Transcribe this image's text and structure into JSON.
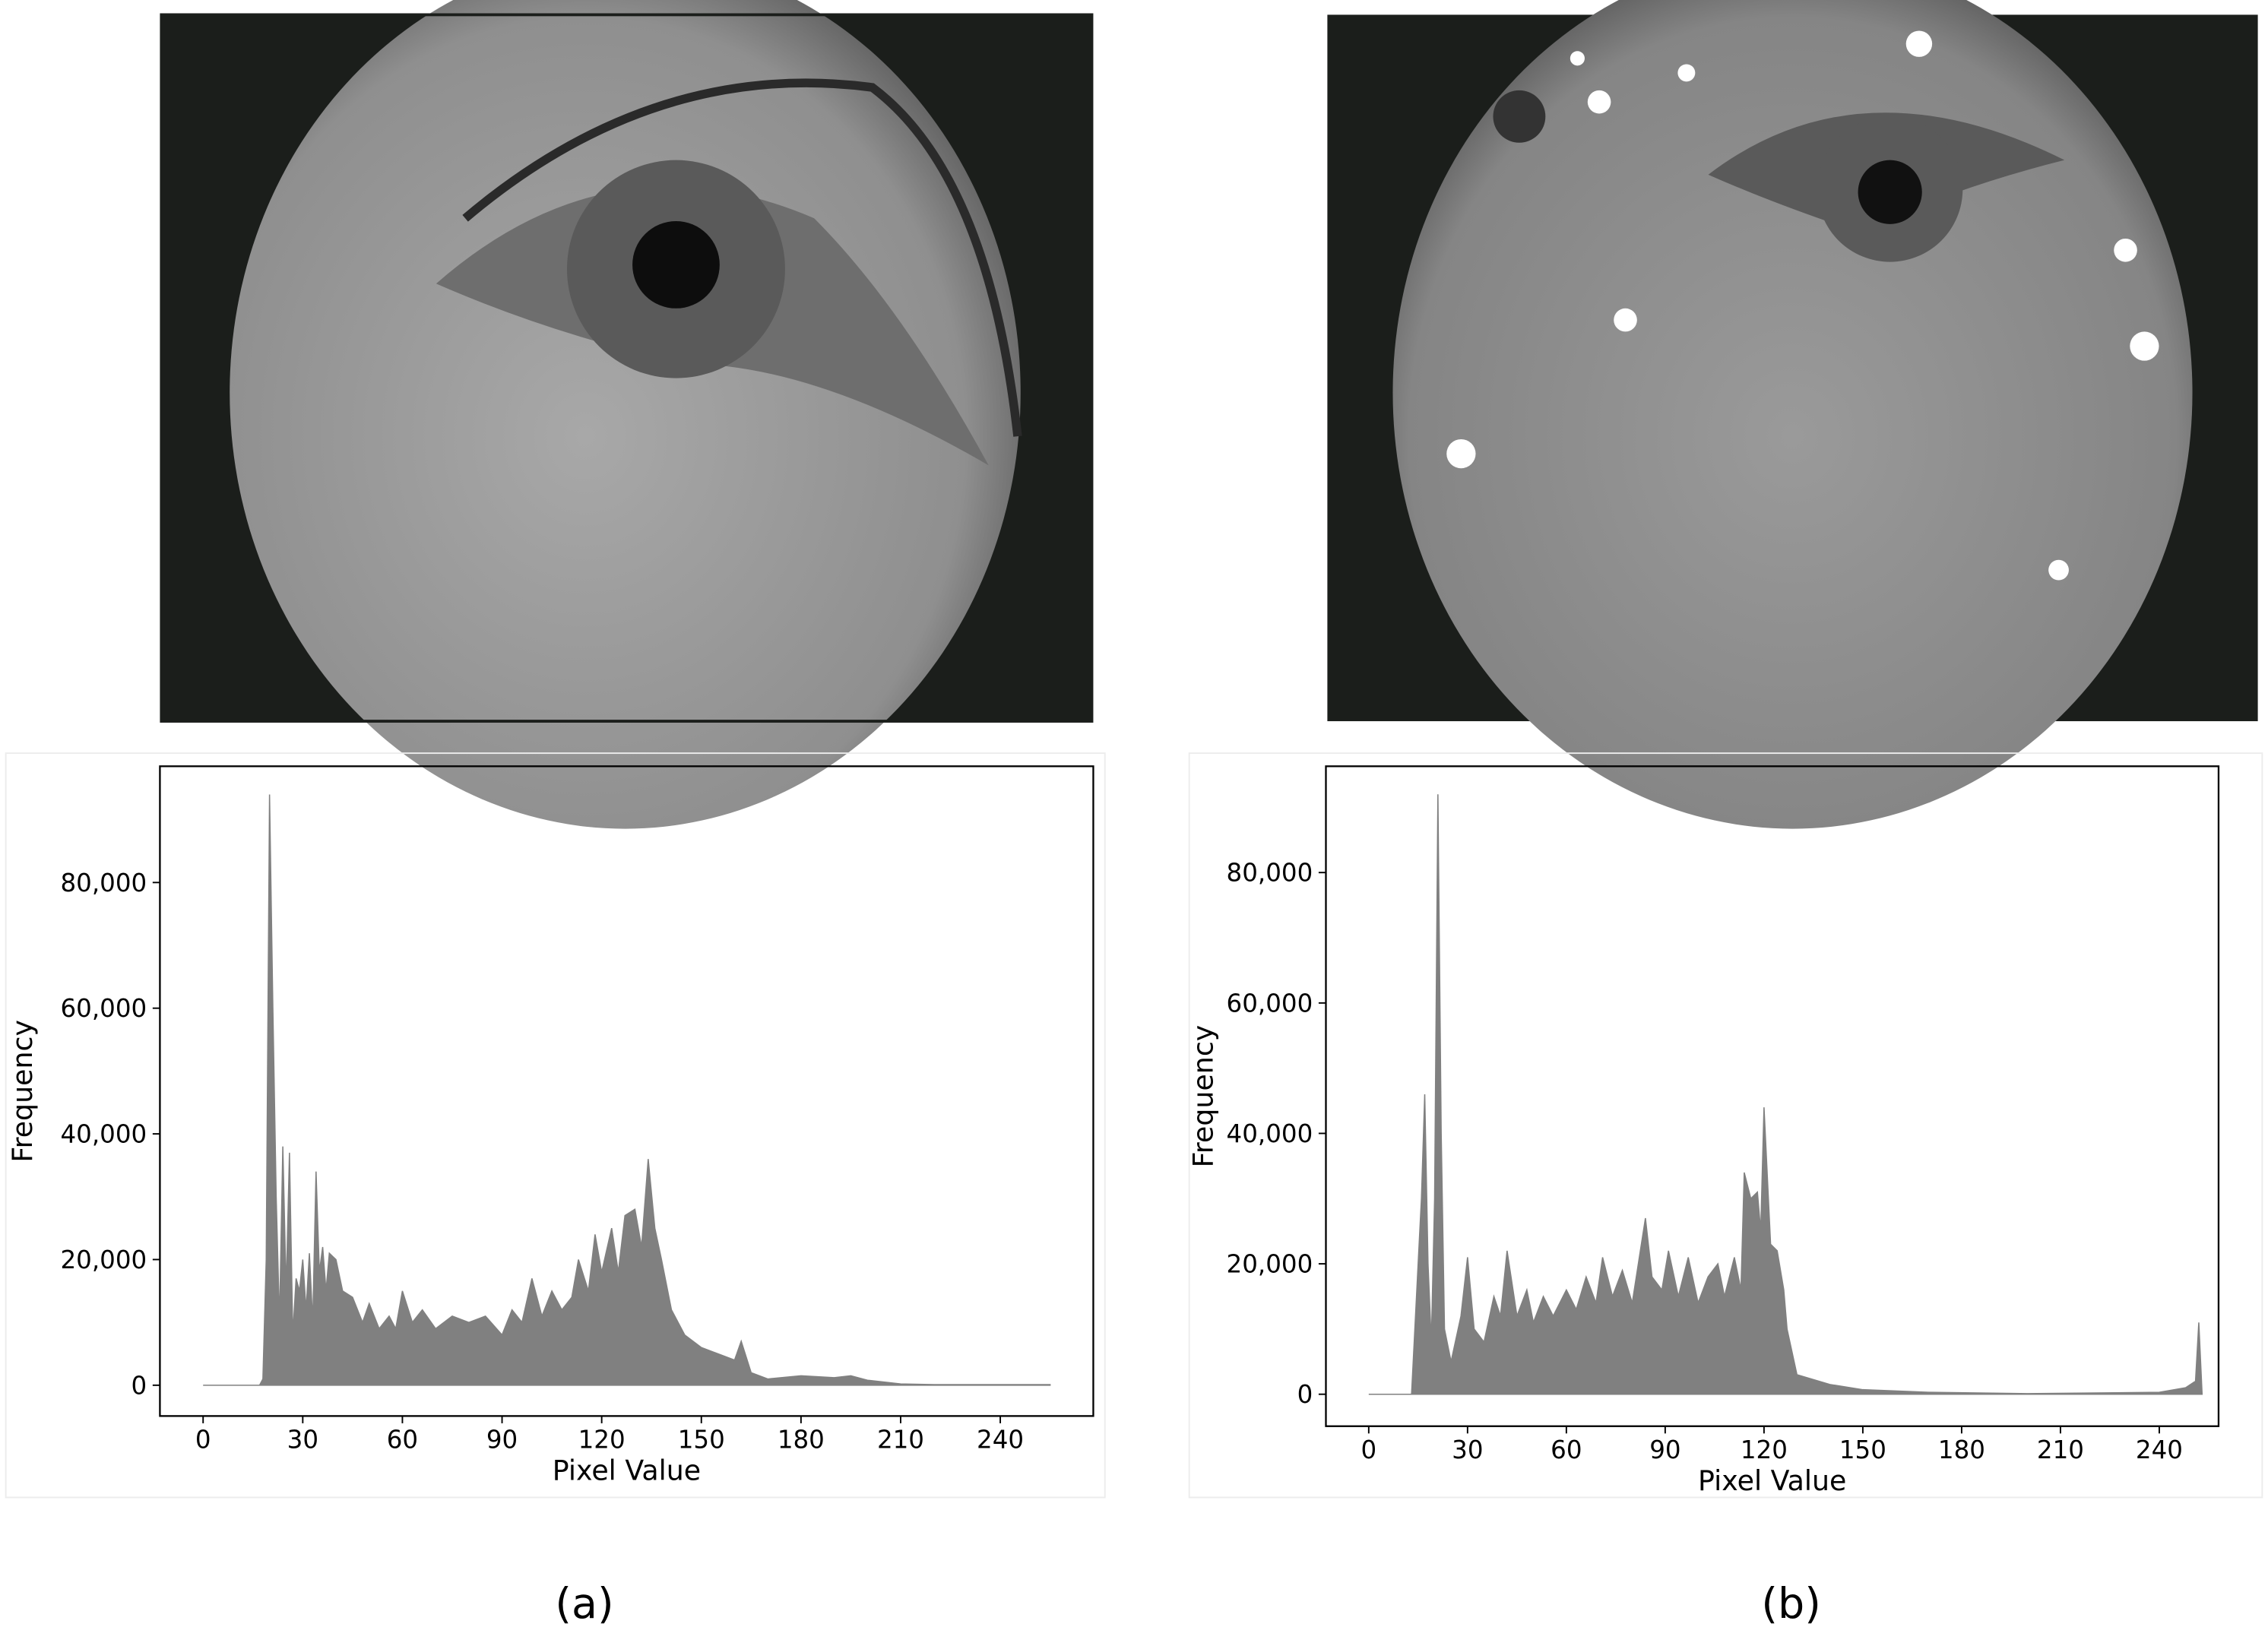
{
  "chart_data": [
    {
      "type": "area",
      "caption": "(a)",
      "xlabel": "Pixel Value",
      "ylabel": "Frequency",
      "color": "#808080",
      "x": [
        0,
        17,
        18,
        19,
        20,
        21,
        22,
        23,
        24,
        25,
        26,
        27,
        28,
        29,
        30,
        31,
        32,
        33,
        34,
        35,
        36,
        37,
        38,
        40,
        42,
        45,
        48,
        50,
        53,
        56,
        58,
        60,
        63,
        66,
        70,
        75,
        80,
        85,
        90,
        93,
        96,
        99,
        102,
        105,
        108,
        111,
        113,
        116,
        118,
        120,
        123,
        125,
        127,
        130,
        132,
        134,
        136,
        138,
        141,
        145,
        150,
        155,
        160,
        162,
        165,
        170,
        180,
        190,
        195,
        200,
        210,
        220,
        255
      ],
      "values": [
        0,
        0,
        1000,
        20000,
        94000,
        60000,
        30000,
        10000,
        38000,
        15000,
        37000,
        8000,
        17000,
        15000,
        20000,
        12000,
        21000,
        10000,
        34000,
        18000,
        22000,
        15000,
        21000,
        20000,
        15000,
        14000,
        10000,
        13000,
        9000,
        11000,
        9000,
        15000,
        10000,
        12000,
        9000,
        11000,
        10000,
        11000,
        8000,
        12000,
        10000,
        17000,
        11000,
        15000,
        12000,
        14000,
        20000,
        15000,
        24000,
        18000,
        25000,
        18000,
        27000,
        28000,
        22000,
        36000,
        25000,
        20000,
        12000,
        8000,
        6000,
        5000,
        4000,
        7000,
        2000,
        1000,
        1500,
        1200,
        1500,
        800,
        200,
        100,
        100
      ],
      "xlim": [
        -13,
        268
      ],
      "ylim": [
        -4900,
        98500
      ],
      "xticks": [
        0,
        30,
        60,
        90,
        120,
        150,
        180,
        210,
        240
      ],
      "yticks": [
        0,
        {
          "value": 20000,
          "label": "20,000"
        },
        {
          "value": 40000,
          "label": "40,000"
        },
        {
          "value": 60000,
          "label": "60,000"
        },
        {
          "value": 80000,
          "label": "80,000"
        }
      ]
    },
    {
      "type": "area",
      "caption": "(b)",
      "xlabel": "Pixel Value",
      "ylabel": "Frequency",
      "color": "#808080",
      "x": [
        0,
        13,
        14,
        16,
        17,
        18,
        19,
        20,
        21,
        22,
        23,
        25,
        28,
        30,
        32,
        35,
        38,
        40,
        42,
        45,
        48,
        50,
        53,
        56,
        60,
        63,
        66,
        69,
        71,
        74,
        77,
        80,
        84,
        86,
        89,
        91,
        94,
        97,
        100,
        103,
        106,
        108,
        111,
        113,
        114,
        116,
        118,
        119,
        120,
        122,
        124,
        126,
        127,
        130,
        140,
        150,
        170,
        200,
        240,
        248,
        251,
        252,
        253
      ],
      "values": [
        0,
        0,
        10000,
        30000,
        46000,
        20000,
        8000,
        30000,
        92000,
        40000,
        10000,
        5000,
        12000,
        21000,
        10000,
        8000,
        15000,
        12000,
        22000,
        12000,
        16000,
        11000,
        15000,
        12000,
        16000,
        13000,
        18000,
        14000,
        21000,
        15000,
        19000,
        14000,
        27000,
        18000,
        16000,
        22000,
        15000,
        21000,
        14000,
        18000,
        20000,
        15000,
        21000,
        16000,
        34000,
        30000,
        31000,
        25000,
        44000,
        23000,
        22000,
        16000,
        10000,
        3000,
        1500,
        700,
        300,
        100,
        300,
        1000,
        2000,
        11000,
        0
      ],
      "xlim": [
        -13,
        258
      ],
      "ylim": [
        -4900,
        96300
      ],
      "xticks": [
        0,
        30,
        60,
        90,
        120,
        150,
        180,
        210,
        240
      ],
      "yticks": [
        0,
        {
          "value": 20000,
          "label": "20,000"
        },
        {
          "value": 40000,
          "label": "40,000"
        },
        {
          "value": 60000,
          "label": "60,000"
        },
        {
          "value": 80000,
          "label": "80,000"
        }
      ]
    }
  ]
}
